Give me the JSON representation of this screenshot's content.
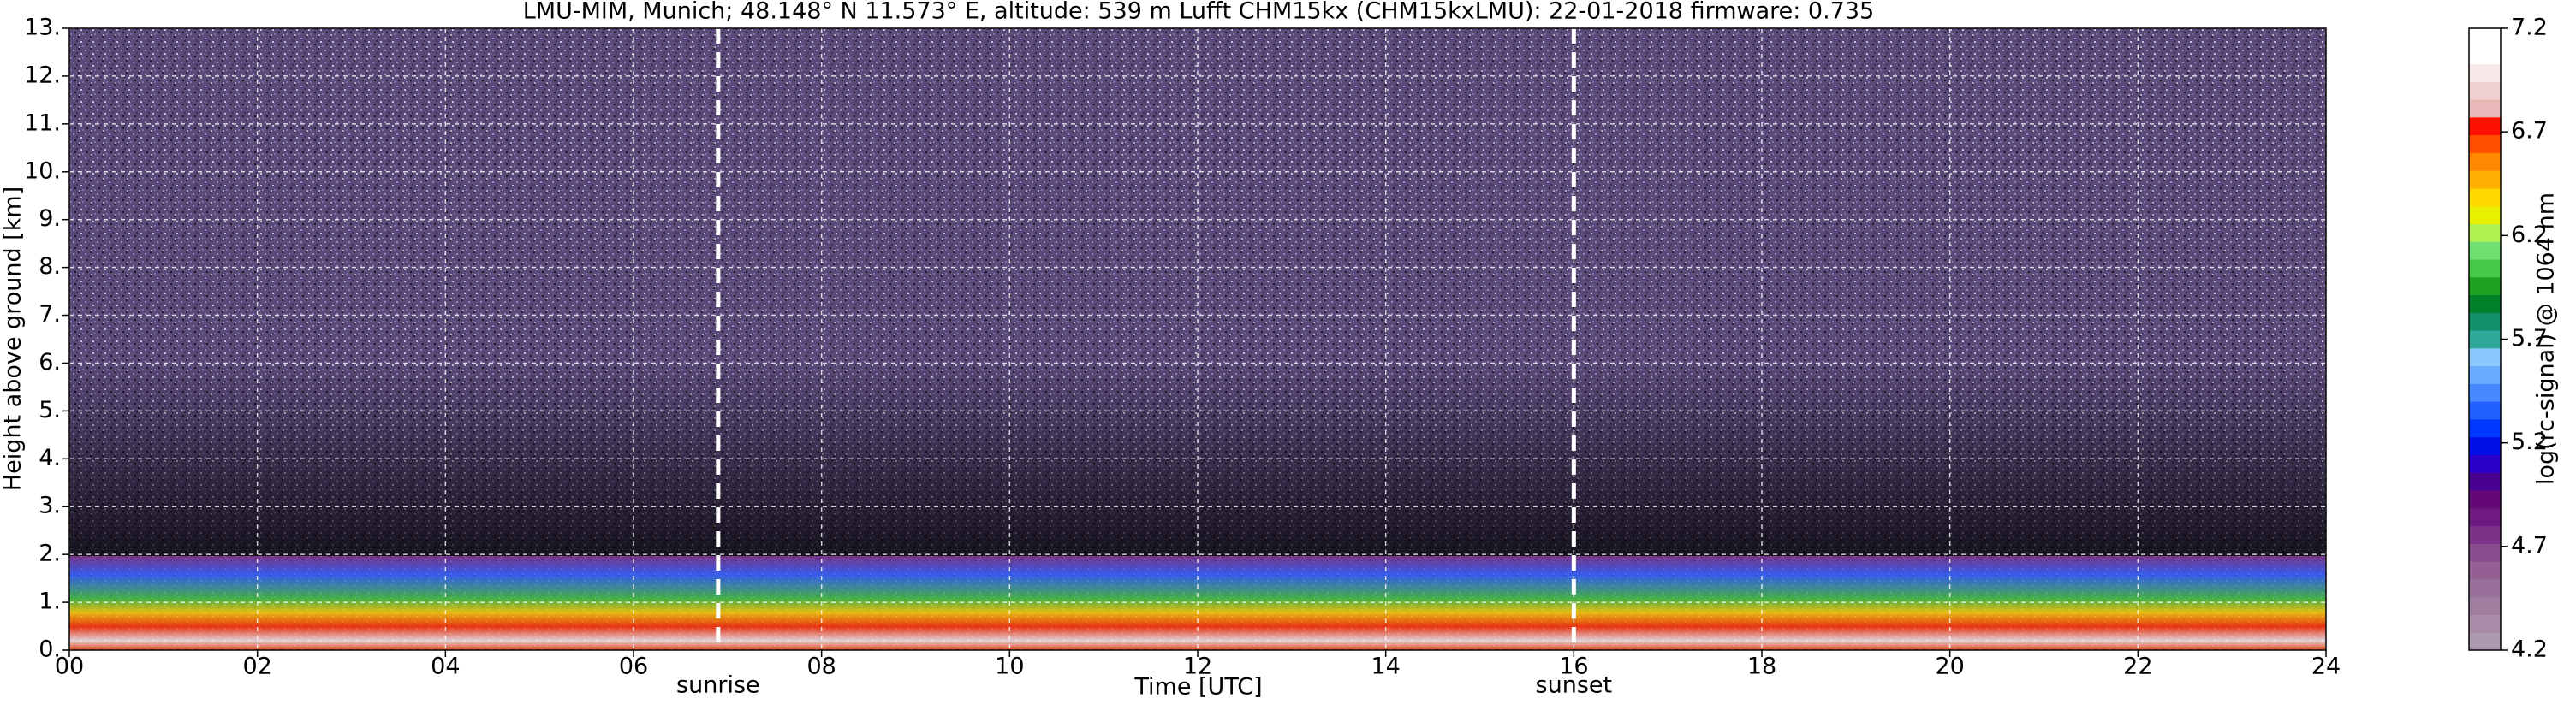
{
  "chart_data": {
    "type": "heatmap",
    "title": "LMU-MIM, Munich; 48.148° N 11.573° E, altitude: 539 m    Lufft CHM15kx (CHM15kxLMU): 22-01-2018    firmware: 0.735",
    "xlabel": "Time [UTC]",
    "ylabel": "Height above ground [km]",
    "xlim": [
      0,
      24
    ],
    "xticks": [
      {
        "value": 0,
        "label": "00"
      },
      {
        "value": 2,
        "label": "02"
      },
      {
        "value": 4,
        "label": "04"
      },
      {
        "value": 6,
        "label": "06"
      },
      {
        "value": 8,
        "label": "08"
      },
      {
        "value": 10,
        "label": "10"
      },
      {
        "value": 12,
        "label": "12"
      },
      {
        "value": 14,
        "label": "14"
      },
      {
        "value": 16,
        "label": "16"
      },
      {
        "value": 18,
        "label": "18"
      },
      {
        "value": 20,
        "label": "20"
      },
      {
        "value": 22,
        "label": "22"
      },
      {
        "value": 24,
        "label": "24"
      }
    ],
    "ylim": [
      0,
      13
    ],
    "yticks": [
      {
        "value": 0,
        "label": "0."
      },
      {
        "value": 1,
        "label": "1."
      },
      {
        "value": 2,
        "label": "2."
      },
      {
        "value": 3,
        "label": "3."
      },
      {
        "value": 4,
        "label": "4."
      },
      {
        "value": 5,
        "label": "5."
      },
      {
        "value": 6,
        "label": "6."
      },
      {
        "value": 7,
        "label": "7."
      },
      {
        "value": 8,
        "label": "8."
      },
      {
        "value": 9,
        "label": "9."
      },
      {
        "value": 10,
        "label": "10."
      },
      {
        "value": 11,
        "label": "11."
      },
      {
        "value": 12,
        "label": "12."
      },
      {
        "value": 13,
        "label": "13."
      }
    ],
    "grid": true,
    "annotations": [
      {
        "x": 6.9,
        "text": "sunrise"
      },
      {
        "x": 16,
        "text": "sunset"
      }
    ],
    "colorbar": {
      "label": "log(rc-signal) @ 1064 nm",
      "lim": [
        4.2,
        7.2
      ],
      "ticks": [
        4.2,
        4.7,
        5.2,
        5.7,
        6.2,
        6.7,
        7.2
      ],
      "colors": [
        "#ae9aae",
        "#a88ca8",
        "#a07ea0",
        "#9a709a",
        "#946094",
        "#8a4c8c",
        "#7c3088",
        "#6e1a80",
        "#640878",
        "#4a0090",
        "#2800c8",
        "#0010e8",
        "#0038ff",
        "#2060ff",
        "#4688ff",
        "#6aacff",
        "#8cc8ff",
        "#30a898",
        "#109068",
        "#008028",
        "#20a020",
        "#48c848",
        "#70e070",
        "#b0f050",
        "#e8f000",
        "#ffd800",
        "#ffb000",
        "#ff8800",
        "#ff5000",
        "#ff1000",
        "#e8b8b8",
        "#f0d0d0",
        "#f8e8e8",
        "#ffffff",
        "#ffffff"
      ]
    }
  }
}
